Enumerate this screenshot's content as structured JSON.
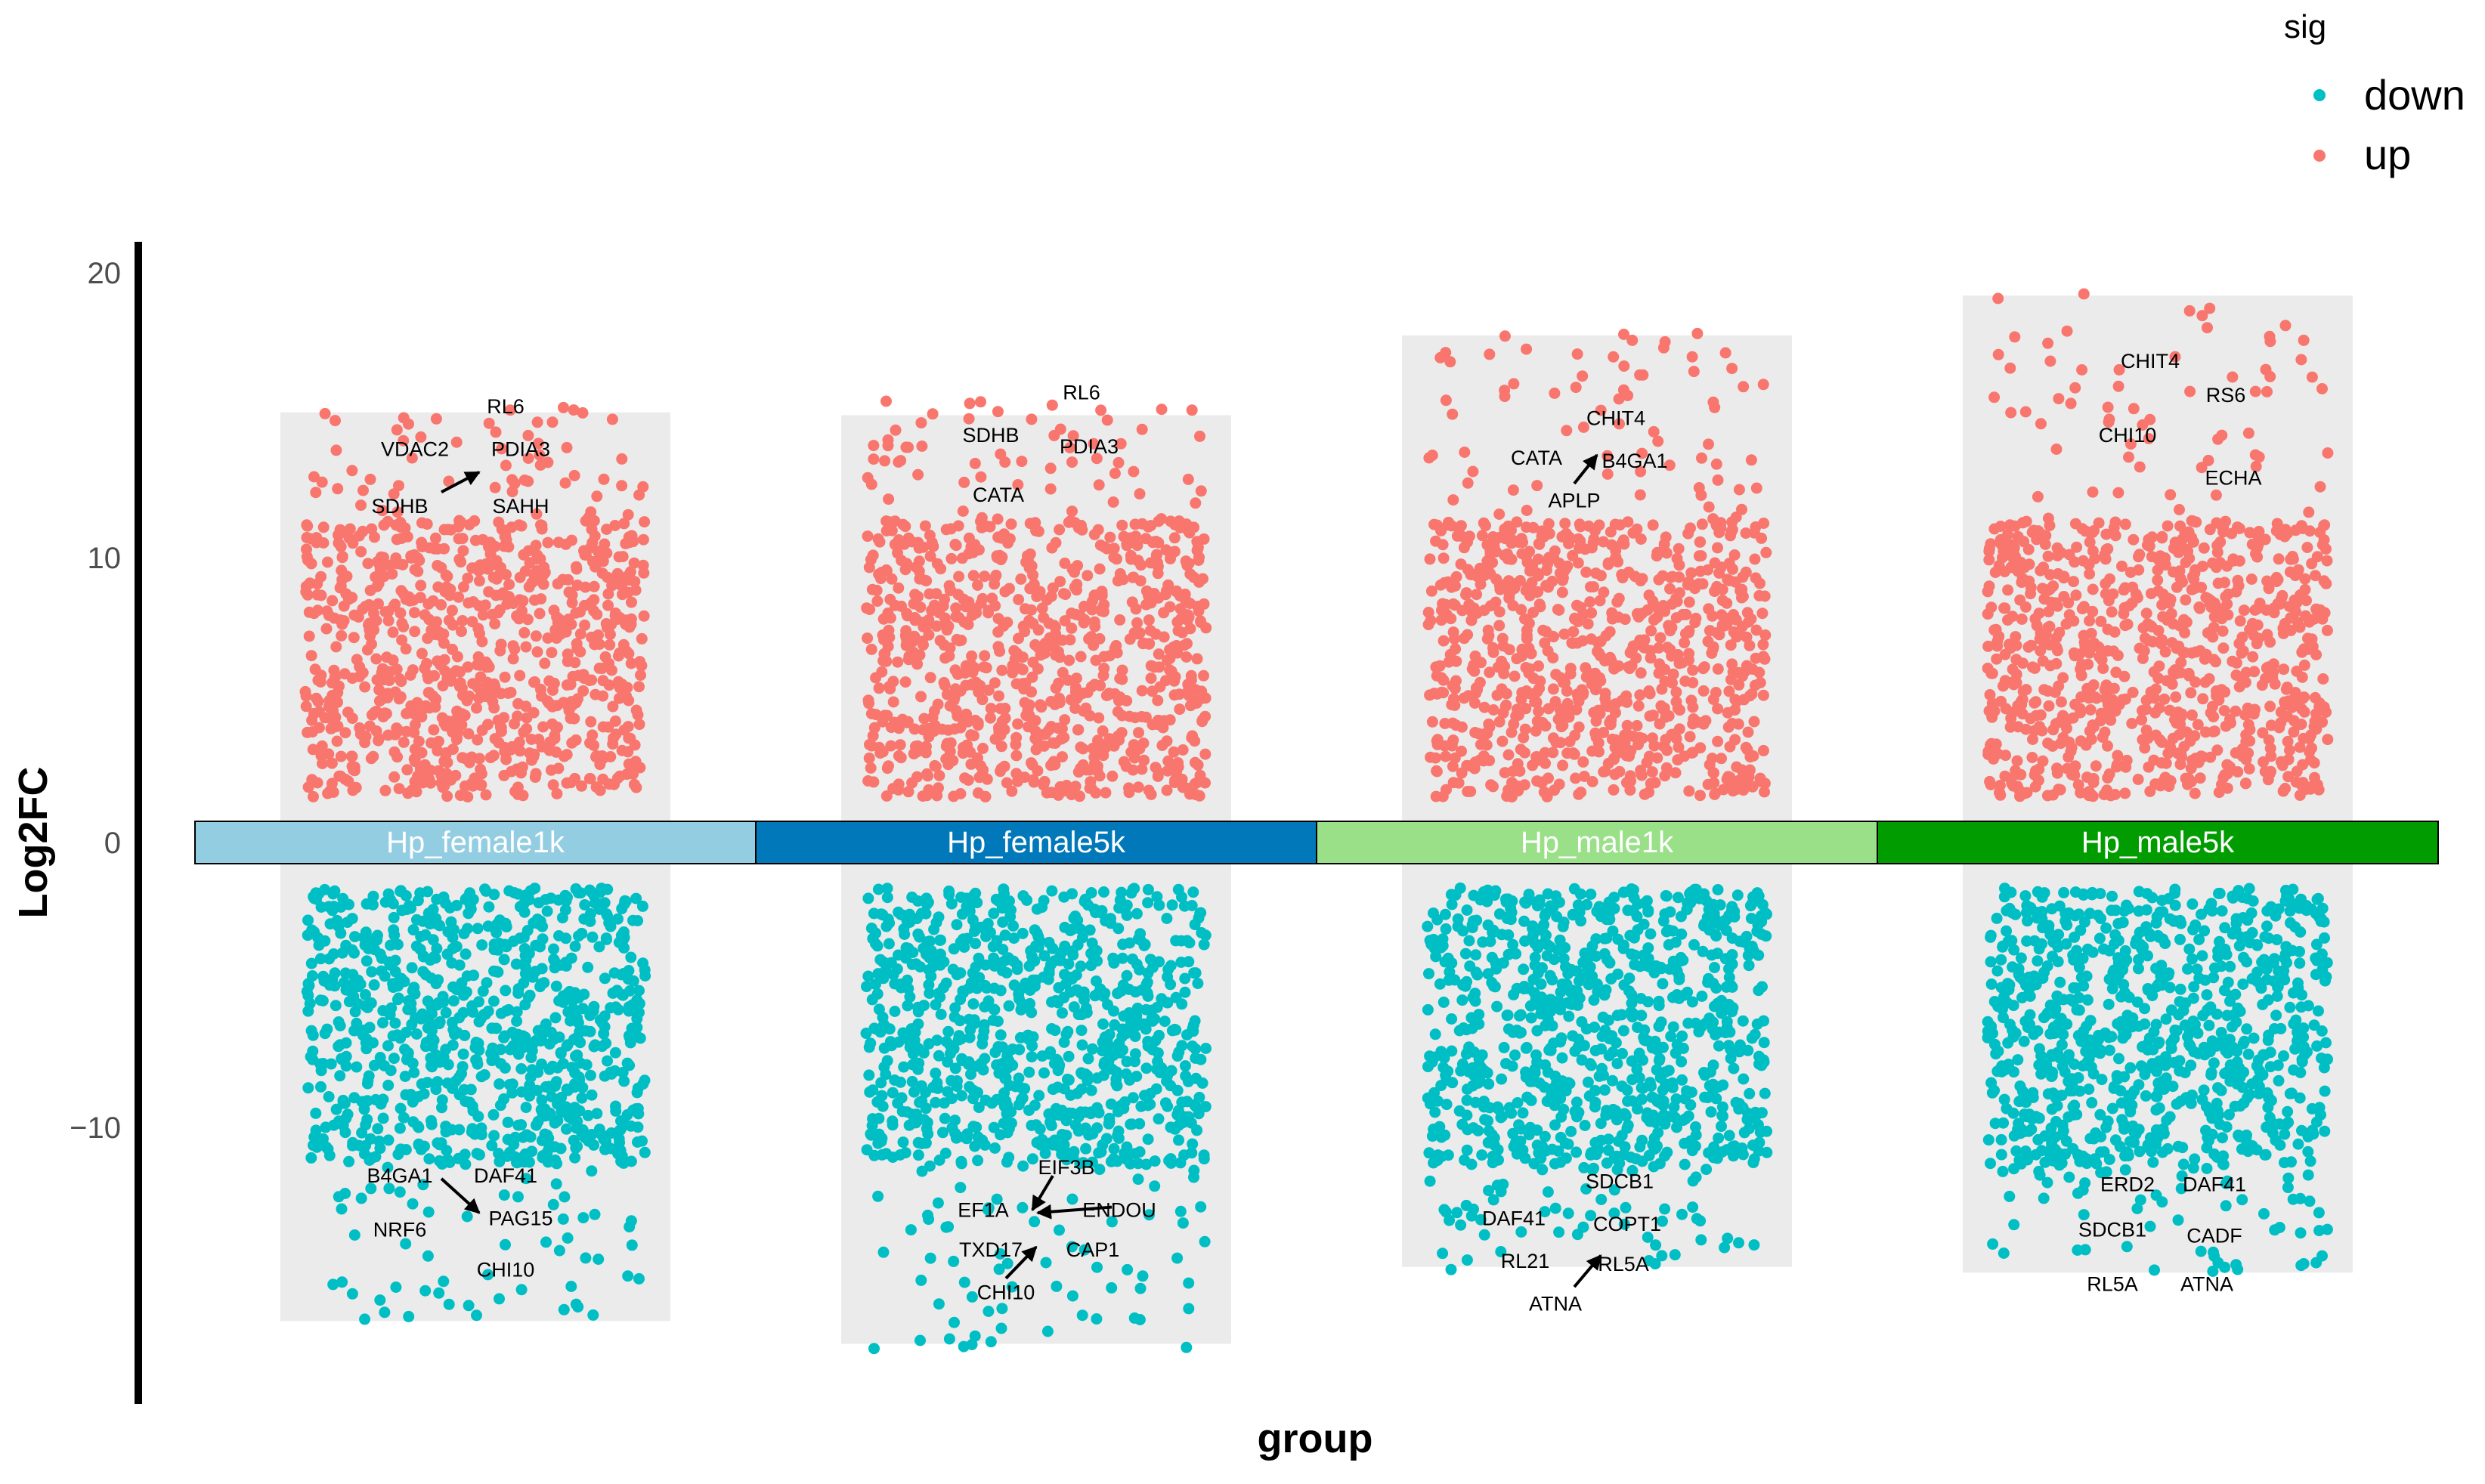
{
  "chart_data": {
    "type": "scatter",
    "title": "",
    "xlabel": "group",
    "ylabel": "Log2FC",
    "ylim": [
      -19.5,
      21
    ],
    "yticks": [
      20,
      10,
      0,
      -10
    ],
    "ytick_labels": [
      "20",
      "10",
      "0",
      "−10"
    ],
    "grid": false,
    "legend": {
      "title": "sig",
      "position": "top-right",
      "entries": [
        {
          "name": "down",
          "color": "#00BFC4"
        },
        {
          "name": "up",
          "color": "#F8766D"
        }
      ]
    },
    "groups": [
      {
        "name": "Hp_female1k",
        "strip_color": "#92CDE2",
        "up": {
          "count": 900,
          "min": 1.6,
          "max": 15.3,
          "band_top": 15.1
        },
        "down": {
          "count": 900,
          "min": -16.8,
          "max": -1.6,
          "band_bottom": -16.8
        },
        "labels": [
          {
            "text": "RL6",
            "y": 15.3
          },
          {
            "text": "VDAC2",
            "y": 13.8
          },
          {
            "text": "PDIA3",
            "y": 13.8
          },
          {
            "text": "SDHB",
            "y": 11.8
          },
          {
            "text": "SAHH",
            "y": 11.8
          },
          {
            "text": "B4GA1",
            "y": -11.7
          },
          {
            "text": "DAF41",
            "y": -11.7
          },
          {
            "text": "PAG15",
            "y": -13.2
          },
          {
            "text": "NRF6",
            "y": -13.6
          },
          {
            "text": "CHI10",
            "y": -15.0
          }
        ]
      },
      {
        "name": "Hp_female5k",
        "strip_color": "#0178BA",
        "up": {
          "count": 900,
          "min": 1.6,
          "max": 15.5,
          "band_top": 15.0
        },
        "down": {
          "count": 900,
          "min": -17.8,
          "max": -1.6,
          "band_bottom": -17.6
        },
        "labels": [
          {
            "text": "RL6",
            "y": 15.8
          },
          {
            "text": "SDHB",
            "y": 14.3
          },
          {
            "text": "PDIA3",
            "y": 13.9
          },
          {
            "text": "CATA",
            "y": 12.2
          },
          {
            "text": "EIF3B",
            "y": -11.4
          },
          {
            "text": "EF1A",
            "y": -12.9
          },
          {
            "text": "ENDOU",
            "y": -12.9
          },
          {
            "text": "TXD17",
            "y": -14.3
          },
          {
            "text": "CAP1",
            "y": -14.3
          },
          {
            "text": "CHI10",
            "y": -15.8
          }
        ]
      },
      {
        "name": "Hp_male1k",
        "strip_color": "#99E088",
        "up": {
          "count": 900,
          "min": 1.6,
          "max": 17.9,
          "band_top": 17.8
        },
        "down": {
          "count": 900,
          "min": -15.0,
          "max": -1.6,
          "band_bottom": -14.9
        },
        "labels": [
          {
            "text": "CHIT4",
            "y": 14.9
          },
          {
            "text": "CATA",
            "y": 13.5
          },
          {
            "text": "B4GA1",
            "y": 13.4
          },
          {
            "text": "APLP",
            "y": 12.0
          },
          {
            "text": "SDCB1",
            "y": -11.9
          },
          {
            "text": "DAF41",
            "y": -13.2
          },
          {
            "text": "COPT1",
            "y": -13.4
          },
          {
            "text": "RL21",
            "y": -14.7
          },
          {
            "text": "RL5A",
            "y": -14.8
          },
          {
            "text": "ATNA",
            "y": -16.2
          }
        ]
      },
      {
        "name": "Hp_male5k",
        "strip_color": "#019D00",
        "up": {
          "count": 900,
          "min": 1.6,
          "max": 19.3,
          "band_top": 19.2
        },
        "down": {
          "count": 900,
          "min": -15.1,
          "max": -1.6,
          "band_bottom": -15.1
        },
        "labels": [
          {
            "text": "CHIT4",
            "y": 16.9
          },
          {
            "text": "RS6",
            "y": 15.7
          },
          {
            "text": "CHI10",
            "y": 14.3
          },
          {
            "text": "ECHA",
            "y": 12.8
          },
          {
            "text": "ERD2",
            "y": -12.0
          },
          {
            "text": "DAF41",
            "y": -12.0
          },
          {
            "text": "SDCB1",
            "y": -13.6
          },
          {
            "text": "CADF",
            "y": -13.8
          },
          {
            "text": "RL5A",
            "y": -15.5
          },
          {
            "text": "ATNA",
            "y": -15.5
          }
        ]
      }
    ]
  }
}
